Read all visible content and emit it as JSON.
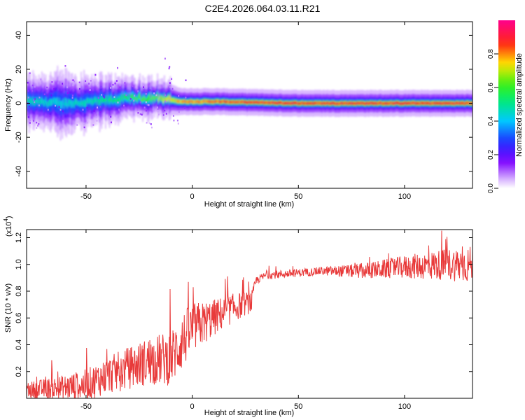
{
  "title": "C2E4.2026.064.03.11.R21",
  "colors": {
    "snr_line": "#e83a3a",
    "background": "#ffffff",
    "axis": "#000000"
  },
  "chart_data": [
    {
      "type": "heatmap",
      "name": "spectrogram",
      "title": "C2E4.2026.064.03.11.R21",
      "xlabel": "Height of straight line (km)",
      "ylabel": "Frequency (Hz)",
      "xlim": [
        -78,
        132
      ],
      "ylim": [
        -50,
        48
      ],
      "xticks": [
        -50,
        0,
        50,
        100
      ],
      "xtick_labels": [
        "-50",
        "0",
        "50",
        "100"
      ],
      "yticks": [
        -40,
        -20,
        0,
        20,
        40
      ],
      "ytick_labels": [
        "-40",
        "-20",
        "0",
        "20",
        "40"
      ],
      "grid": false,
      "colorbar": {
        "label": "Normalized spectral amplitude",
        "range": [
          0,
          1
        ],
        "ticks": [
          0.0,
          0.2,
          0.4,
          0.6,
          0.8
        ],
        "tick_labels": [
          "0.0",
          "0.2",
          "0.4",
          "0.6",
          "0.8"
        ],
        "colormap": "rainbow (purple-blue-cyan-green-yellow-red-magenta)"
      },
      "ridge": {
        "description": "dominant frequency band near 0 Hz",
        "points": [
          {
            "x": -78,
            "center_hz": 1,
            "halfwidth_hz": 5,
            "amp": 0.5
          },
          {
            "x": -60,
            "center_hz": 0,
            "halfwidth_hz": 6,
            "amp": 0.45
          },
          {
            "x": -45,
            "center_hz": 1,
            "halfwidth_hz": 5,
            "amp": 0.5
          },
          {
            "x": -30,
            "center_hz": 3,
            "halfwidth_hz": 4,
            "amp": 0.6
          },
          {
            "x": -15,
            "center_hz": 3,
            "halfwidth_hz": 4,
            "amp": 0.7
          },
          {
            "x": -5,
            "center_hz": 1,
            "halfwidth_hz": 3,
            "amp": 0.8
          },
          {
            "x": 10,
            "center_hz": 1,
            "halfwidth_hz": 3,
            "amp": 0.85
          },
          {
            "x": 50,
            "center_hz": 0,
            "halfwidth_hz": 3,
            "amp": 0.9
          },
          {
            "x": 100,
            "center_hz": 0,
            "halfwidth_hz": 3,
            "amp": 0.9
          },
          {
            "x": 132,
            "center_hz": 0,
            "halfwidth_hz": 3,
            "amp": 0.9
          }
        ]
      }
    },
    {
      "type": "line",
      "name": "snr",
      "xlabel": "Height of straight line (km)",
      "ylabel": "SNR (10 * v/v)",
      "scale_label": "(x10",
      "scale_exponent": "4",
      "scale_suffix": ")",
      "xlim": [
        -78,
        132
      ],
      "ylim": [
        0.0,
        1.26
      ],
      "xticks": [
        -50,
        0,
        50,
        100
      ],
      "xtick_labels": [
        "-50",
        "0",
        "50",
        "100"
      ],
      "yticks": [
        0.2,
        0.4,
        0.6,
        0.8,
        1.0,
        1.2
      ],
      "ytick_labels": [
        "0.2",
        "0.4",
        "0.6",
        "0.8",
        "1.0",
        "1.2"
      ],
      "grid": false,
      "series": [
        {
          "name": "SNR",
          "trend_x": [
            -78,
            -60,
            -50,
            -40,
            -20,
            -10,
            -5,
            0,
            10,
            20,
            28,
            30,
            35,
            45,
            60,
            80,
            100,
            120,
            132
          ],
          "trend_y": [
            0.06,
            0.08,
            0.1,
            0.17,
            0.28,
            0.3,
            0.42,
            0.52,
            0.6,
            0.68,
            0.72,
            0.88,
            0.92,
            0.93,
            0.95,
            0.95,
            0.98,
            1.0,
            1.0
          ],
          "noise_x": [
            -78,
            -20,
            -5,
            10,
            28,
            30,
            60,
            90,
            132
          ],
          "noise_amp": [
            0.06,
            0.18,
            0.22,
            0.14,
            0.08,
            0.03,
            0.03,
            0.07,
            0.14
          ]
        }
      ]
    }
  ]
}
